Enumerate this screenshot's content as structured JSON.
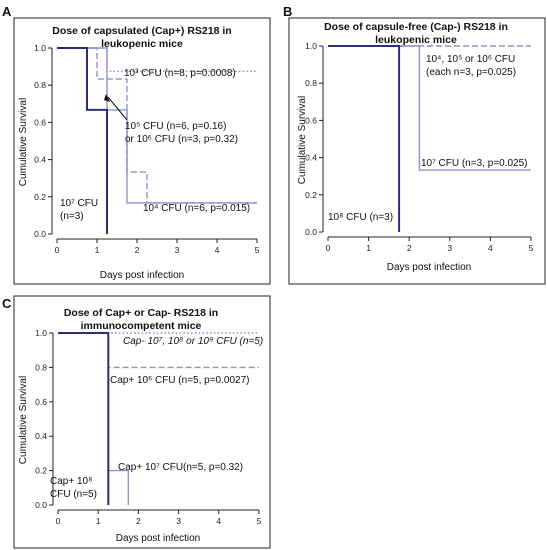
{
  "figure": {
    "panels": [
      {
        "label": "A",
        "title_lines": [
          "Dose of capsulated (Cap+) RS218 in",
          "leukopenic mice"
        ],
        "ylabel": "Cumulative Survival",
        "xlabel": "Days post infection",
        "annotations": [
          {
            "text": "10³ CFU (n=8, p=0.0008)"
          },
          {
            "text": "10⁵ CFU (n=6, p=0.16)"
          },
          {
            "text": "or 10⁶ CFU (n=3, p=0.32)"
          },
          {
            "text": "10⁷ CFU"
          },
          {
            "text": "(n=3)"
          },
          {
            "text": "10⁴ CFU (n=6, p=0.015)"
          }
        ]
      },
      {
        "label": "B",
        "title_lines": [
          "Dose of capsule-free (Cap-) RS218 in",
          "leukopenic mice"
        ],
        "ylabel": "Cumulative Survival",
        "xlabel": "Days post infection",
        "annotations": [
          {
            "text": "10⁴, 10⁵ or 10⁶ CFU"
          },
          {
            "text": "(each n=3, p=0.025)"
          },
          {
            "text": "10⁷ CFU (n=3, p=0.025)"
          },
          {
            "text": "10⁸ CFU (n=3)"
          }
        ]
      },
      {
        "label": "C",
        "title_lines": [
          "Dose of Cap+ or Cap- RS218  in",
          "immunocompetent mice"
        ],
        "ylabel": "Cumulative Survival",
        "xlabel": "Days post infection",
        "annotations": [
          {
            "text": "Cap- 10⁷, 10⁸ or 10⁹ CFU (n=5)"
          },
          {
            "text": "Cap+ 10⁶ CFU (n=5, p=0.0027)"
          },
          {
            "text": "Cap+  10⁷ CFU(n=5,  p=0.32)"
          },
          {
            "text": "Cap+  10⁸"
          },
          {
            "text": "CFU (n=5)"
          }
        ]
      }
    ]
  },
  "chart_data": [
    {
      "type": "line",
      "title": "Dose of capsulated (Cap+) RS218 in leukopenic mice",
      "xlabel": "Days post infection",
      "ylabel": "Cumulative Survival",
      "xlim": [
        0,
        5
      ],
      "ylim": [
        0,
        1
      ],
      "xticks": [
        "0",
        "1",
        "2",
        "3",
        "4",
        "5"
      ],
      "yticks": [
        "0.0",
        "0.2",
        "0.4",
        "0.6",
        "0.8",
        "1.0"
      ],
      "series": [
        {
          "color": "#8f93c8",
          "style": "dotted",
          "x": [
            0,
            1.25,
            1.25,
            5
          ],
          "y": [
            1.0,
            1.0,
            0.875,
            0.875
          ]
        },
        {
          "color": "#8f93c8",
          "style": "dashed",
          "x": [
            0,
            1.0,
            1.0,
            1.75,
            1.75,
            2.25,
            2.25,
            5
          ],
          "y": [
            1.0,
            1.0,
            0.833,
            0.833,
            0.333,
            0.333,
            0.167,
            0.167
          ]
        },
        {
          "color": "#8f93c8",
          "style": "solid",
          "x": [
            0,
            1.25,
            1.25,
            1.75,
            1.75,
            5
          ],
          "y": [
            1.0,
            1.0,
            0.667,
            0.667,
            0.167,
            0.167
          ]
        },
        {
          "color": "#2b2f7a",
          "style": "solid-bold",
          "x": [
            0,
            0.75,
            0.75,
            1.25,
            1.25
          ],
          "y": [
            1.0,
            1.0,
            0.667,
            0.667,
            0.0
          ]
        }
      ]
    },
    {
      "type": "line",
      "title": "Dose of capsule-free (Cap-) RS218 in leukopenic mice",
      "xlabel": "Days post infection",
      "ylabel": "Cumulative Survival",
      "xlim": [
        0,
        5
      ],
      "ylim": [
        0,
        1
      ],
      "xticks": [
        "0",
        "1",
        "2",
        "3",
        "4",
        "5"
      ],
      "yticks": [
        "0.0",
        "0.2",
        "0.4",
        "0.6",
        "0.8",
        "1.0"
      ],
      "series": [
        {
          "color": "#8f93c8",
          "style": "dashed",
          "x": [
            0,
            5
          ],
          "y": [
            1.0,
            1.0
          ]
        },
        {
          "color": "#8f93c8",
          "style": "solid",
          "x": [
            0,
            2.25,
            2.25,
            5
          ],
          "y": [
            1.0,
            1.0,
            0.333,
            0.333
          ]
        },
        {
          "color": "#2b2f7a",
          "style": "solid-bold",
          "x": [
            0,
            1.75,
            1.75
          ],
          "y": [
            1.0,
            1.0,
            0.0
          ]
        }
      ]
    },
    {
      "type": "line",
      "title": "Dose of Cap+ or Cap- RS218 in immunocompetent mice",
      "xlabel": "Days post infection",
      "ylabel": "Cumulative Survival",
      "xlim": [
        0,
        5
      ],
      "ylim": [
        0,
        1
      ],
      "xticks": [
        "0",
        "1",
        "2",
        "3",
        "4",
        "5"
      ],
      "yticks": [
        "0.0",
        "0.2",
        "0.4",
        "0.6",
        "0.8",
        "1.0"
      ],
      "series": [
        {
          "color": "#8f93c8",
          "style": "dotted",
          "x": [
            0,
            5
          ],
          "y": [
            1.0,
            1.0
          ]
        },
        {
          "color": "#8f93c8",
          "style": "dashed",
          "x": [
            0,
            1.25,
            1.25,
            5
          ],
          "y": [
            1.0,
            1.0,
            0.8,
            0.8
          ]
        },
        {
          "color": "#8f93c8",
          "style": "solid",
          "x": [
            0,
            1.25,
            1.25,
            1.75,
            1.75
          ],
          "y": [
            1.0,
            1.0,
            0.2,
            0.2,
            0.0
          ]
        },
        {
          "color": "#2b2f7a",
          "style": "solid-bold",
          "x": [
            0,
            1.25,
            1.25
          ],
          "y": [
            1.0,
            1.0,
            0.0
          ]
        }
      ]
    }
  ]
}
